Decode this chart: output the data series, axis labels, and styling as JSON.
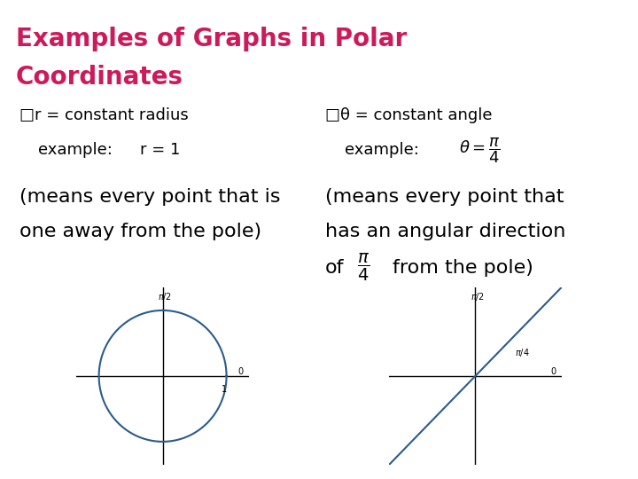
{
  "title_line1": "Examples of Graphs in Polar",
  "title_line2": "Coordinates",
  "title_color": "#cc1a5a",
  "title_bg": "#1a0a0a",
  "title_fontsize": 20,
  "left_label1": "□r = constant radius",
  "left_label2_a": "example:",
  "left_label2_b": "r = 1",
  "left_desc": "(means every point that is\none away from the pole)",
  "right_label1": "□θ = constant angle",
  "right_label2_a": "example:",
  "right_desc": "(means every point that\nhas an angular direction",
  "right_desc2": "from the pole)",
  "plot1_bg": "#adb5bd",
  "plot2_bg": "#adb5bd",
  "circle_color": "#2b5c8a",
  "line_color": "#2b5c8a",
  "text_fontsize": 13,
  "desc_fontsize": 16
}
